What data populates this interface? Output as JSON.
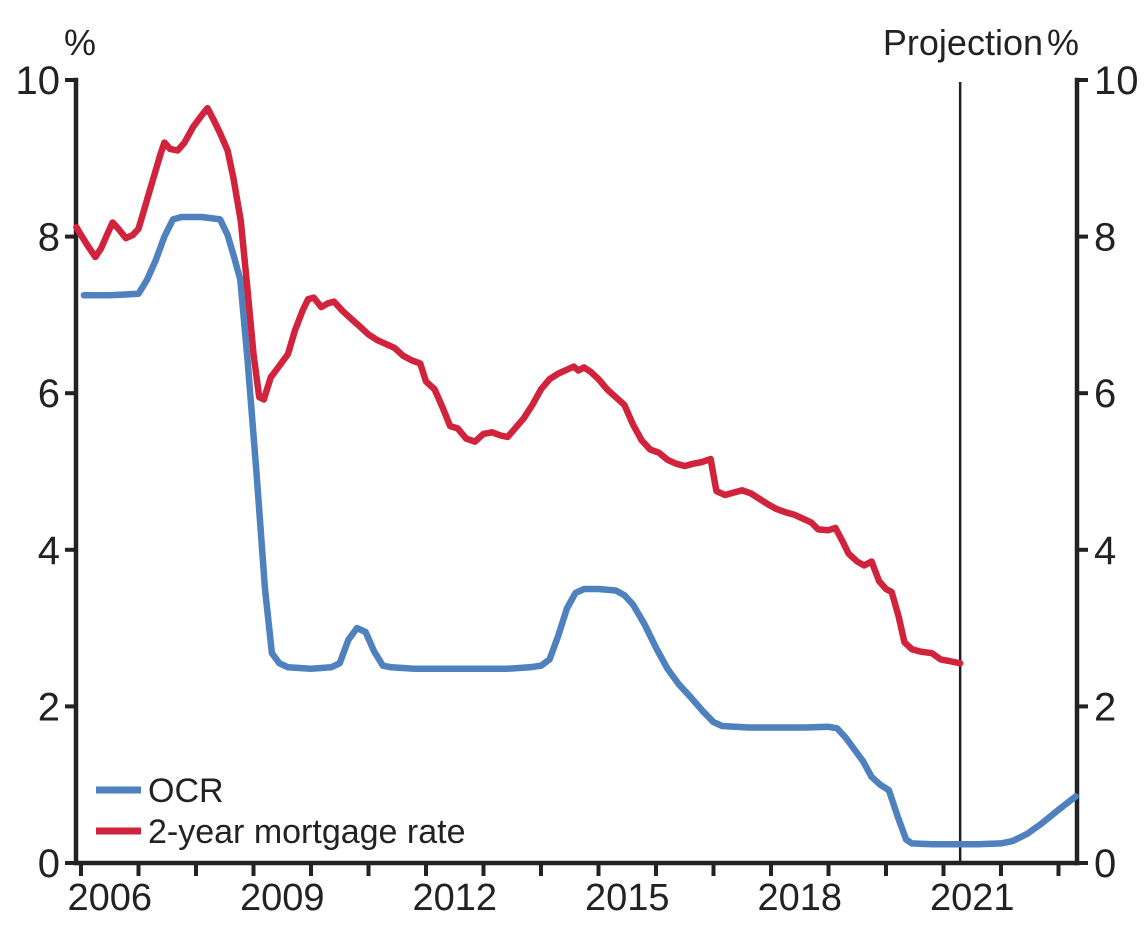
{
  "chart_data": {
    "type": "line",
    "title": "",
    "xlabel": "",
    "ylabel_left": "%",
    "ylabel_right": "%",
    "projection_label": "Projection",
    "projection_line_x": 2021.29,
    "xlim": [
      2005.913,
      2023.322
    ],
    "ylim": [
      0,
      10
    ],
    "grid": false,
    "legend_position": "lower left",
    "y_ticks": [
      0,
      2,
      4,
      6,
      8,
      10
    ],
    "x_tick_years": [
      2006,
      2007,
      2008,
      2009,
      2010,
      2011,
      2012,
      2013,
      2014,
      2015,
      2016,
      2017,
      2018,
      2019,
      2020,
      2021,
      2022,
      2023
    ],
    "x_label_years": [
      2006,
      2009,
      2012,
      2015,
      2018,
      2021
    ],
    "axis_color": "#222222",
    "series": [
      {
        "name": "OCR",
        "color": "#4E81BD",
        "points": [
          [
            2006.05,
            7.25
          ],
          [
            2006.5,
            7.25
          ],
          [
            2007.0,
            7.27
          ],
          [
            2007.15,
            7.45
          ],
          [
            2007.3,
            7.7
          ],
          [
            2007.45,
            8.0
          ],
          [
            2007.6,
            8.22
          ],
          [
            2007.75,
            8.25
          ],
          [
            2008.1,
            8.25
          ],
          [
            2008.42,
            8.22
          ],
          [
            2008.55,
            8.02
          ],
          [
            2008.67,
            7.72
          ],
          [
            2008.77,
            7.45
          ],
          [
            2008.9,
            6.4
          ],
          [
            2009.05,
            5.0
          ],
          [
            2009.2,
            3.5
          ],
          [
            2009.32,
            2.68
          ],
          [
            2009.45,
            2.55
          ],
          [
            2009.6,
            2.5
          ],
          [
            2010.0,
            2.48
          ],
          [
            2010.35,
            2.5
          ],
          [
            2010.5,
            2.55
          ],
          [
            2010.65,
            2.85
          ],
          [
            2010.8,
            3.0
          ],
          [
            2010.95,
            2.95
          ],
          [
            2011.1,
            2.7
          ],
          [
            2011.25,
            2.52
          ],
          [
            2011.4,
            2.5
          ],
          [
            2011.8,
            2.48
          ],
          [
            2012.2,
            2.48
          ],
          [
            2012.6,
            2.48
          ],
          [
            2013.0,
            2.48
          ],
          [
            2013.4,
            2.48
          ],
          [
            2013.8,
            2.5
          ],
          [
            2014.0,
            2.52
          ],
          [
            2014.15,
            2.6
          ],
          [
            2014.3,
            2.9
          ],
          [
            2014.45,
            3.25
          ],
          [
            2014.6,
            3.45
          ],
          [
            2014.75,
            3.5
          ],
          [
            2015.0,
            3.5
          ],
          [
            2015.3,
            3.48
          ],
          [
            2015.45,
            3.42
          ],
          [
            2015.6,
            3.3
          ],
          [
            2015.8,
            3.05
          ],
          [
            2016.0,
            2.75
          ],
          [
            2016.2,
            2.48
          ],
          [
            2016.4,
            2.28
          ],
          [
            2016.6,
            2.12
          ],
          [
            2016.8,
            1.95
          ],
          [
            2017.0,
            1.8
          ],
          [
            2017.15,
            1.75
          ],
          [
            2017.6,
            1.73
          ],
          [
            2018.1,
            1.73
          ],
          [
            2018.6,
            1.73
          ],
          [
            2019.0,
            1.74
          ],
          [
            2019.15,
            1.72
          ],
          [
            2019.3,
            1.6
          ],
          [
            2019.45,
            1.45
          ],
          [
            2019.6,
            1.3
          ],
          [
            2019.75,
            1.1
          ],
          [
            2019.9,
            1.0
          ],
          [
            2020.05,
            0.93
          ],
          [
            2020.2,
            0.6
          ],
          [
            2020.35,
            0.3
          ],
          [
            2020.45,
            0.25
          ],
          [
            2020.8,
            0.24
          ],
          [
            2021.2,
            0.24
          ],
          [
            2021.6,
            0.24
          ],
          [
            2022.0,
            0.25
          ],
          [
            2022.2,
            0.28
          ],
          [
            2022.45,
            0.37
          ],
          [
            2022.7,
            0.5
          ],
          [
            2023.0,
            0.68
          ],
          [
            2023.3,
            0.85
          ]
        ]
      },
      {
        "name": "2-year mortgage rate",
        "color": "#D2233C",
        "points": [
          [
            2005.92,
            8.12
          ],
          [
            2006.0,
            8.02
          ],
          [
            2006.12,
            7.88
          ],
          [
            2006.25,
            7.74
          ],
          [
            2006.35,
            7.85
          ],
          [
            2006.45,
            8.02
          ],
          [
            2006.55,
            8.18
          ],
          [
            2006.65,
            8.1
          ],
          [
            2006.78,
            7.98
          ],
          [
            2006.9,
            8.02
          ],
          [
            2007.0,
            8.1
          ],
          [
            2007.1,
            8.35
          ],
          [
            2007.2,
            8.6
          ],
          [
            2007.3,
            8.85
          ],
          [
            2007.38,
            9.05
          ],
          [
            2007.45,
            9.2
          ],
          [
            2007.55,
            9.12
          ],
          [
            2007.68,
            9.1
          ],
          [
            2007.8,
            9.2
          ],
          [
            2007.95,
            9.4
          ],
          [
            2008.1,
            9.55
          ],
          [
            2008.2,
            9.64
          ],
          [
            2008.3,
            9.5
          ],
          [
            2008.42,
            9.32
          ],
          [
            2008.55,
            9.1
          ],
          [
            2008.65,
            8.75
          ],
          [
            2008.78,
            8.2
          ],
          [
            2008.9,
            7.3
          ],
          [
            2009.0,
            6.5
          ],
          [
            2009.1,
            5.95
          ],
          [
            2009.18,
            5.92
          ],
          [
            2009.3,
            6.2
          ],
          [
            2009.45,
            6.35
          ],
          [
            2009.6,
            6.5
          ],
          [
            2009.72,
            6.8
          ],
          [
            2009.85,
            7.05
          ],
          [
            2009.95,
            7.2
          ],
          [
            2010.05,
            7.22
          ],
          [
            2010.18,
            7.1
          ],
          [
            2010.3,
            7.15
          ],
          [
            2010.4,
            7.17
          ],
          [
            2010.55,
            7.05
          ],
          [
            2010.7,
            6.95
          ],
          [
            2010.85,
            6.85
          ],
          [
            2011.0,
            6.75
          ],
          [
            2011.15,
            6.68
          ],
          [
            2011.3,
            6.63
          ],
          [
            2011.45,
            6.58
          ],
          [
            2011.6,
            6.48
          ],
          [
            2011.75,
            6.42
          ],
          [
            2011.9,
            6.38
          ],
          [
            2012.0,
            6.15
          ],
          [
            2012.15,
            6.05
          ],
          [
            2012.3,
            5.8
          ],
          [
            2012.42,
            5.58
          ],
          [
            2012.55,
            5.55
          ],
          [
            2012.7,
            5.42
          ],
          [
            2012.85,
            5.38
          ],
          [
            2013.0,
            5.48
          ],
          [
            2013.15,
            5.5
          ],
          [
            2013.3,
            5.46
          ],
          [
            2013.42,
            5.44
          ],
          [
            2013.55,
            5.55
          ],
          [
            2013.7,
            5.68
          ],
          [
            2013.85,
            5.85
          ],
          [
            2014.0,
            6.05
          ],
          [
            2014.15,
            6.18
          ],
          [
            2014.3,
            6.25
          ],
          [
            2014.45,
            6.3
          ],
          [
            2014.57,
            6.34
          ],
          [
            2014.65,
            6.29
          ],
          [
            2014.75,
            6.33
          ],
          [
            2014.87,
            6.27
          ],
          [
            2015.0,
            6.18
          ],
          [
            2015.15,
            6.05
          ],
          [
            2015.3,
            5.95
          ],
          [
            2015.45,
            5.85
          ],
          [
            2015.6,
            5.6
          ],
          [
            2015.75,
            5.4
          ],
          [
            2015.9,
            5.28
          ],
          [
            2016.05,
            5.24
          ],
          [
            2016.2,
            5.15
          ],
          [
            2016.35,
            5.1
          ],
          [
            2016.5,
            5.07
          ],
          [
            2016.65,
            5.1
          ],
          [
            2016.8,
            5.12
          ],
          [
            2016.95,
            5.16
          ],
          [
            2017.05,
            4.75
          ],
          [
            2017.2,
            4.7
          ],
          [
            2017.35,
            4.73
          ],
          [
            2017.5,
            4.76
          ],
          [
            2017.65,
            4.72
          ],
          [
            2017.8,
            4.65
          ],
          [
            2017.95,
            4.58
          ],
          [
            2018.1,
            4.52
          ],
          [
            2018.25,
            4.48
          ],
          [
            2018.4,
            4.45
          ],
          [
            2018.55,
            4.4
          ],
          [
            2018.7,
            4.35
          ],
          [
            2018.82,
            4.26
          ],
          [
            2019.0,
            4.25
          ],
          [
            2019.12,
            4.28
          ],
          [
            2019.25,
            4.1
          ],
          [
            2019.35,
            3.95
          ],
          [
            2019.5,
            3.85
          ],
          [
            2019.62,
            3.8
          ],
          [
            2019.75,
            3.85
          ],
          [
            2019.88,
            3.6
          ],
          [
            2020.0,
            3.5
          ],
          [
            2020.1,
            3.46
          ],
          [
            2020.22,
            3.15
          ],
          [
            2020.32,
            2.82
          ],
          [
            2020.45,
            2.73
          ],
          [
            2020.6,
            2.7
          ],
          [
            2020.8,
            2.68
          ],
          [
            2020.95,
            2.6
          ],
          [
            2021.1,
            2.58
          ],
          [
            2021.29,
            2.55
          ]
        ]
      }
    ]
  }
}
